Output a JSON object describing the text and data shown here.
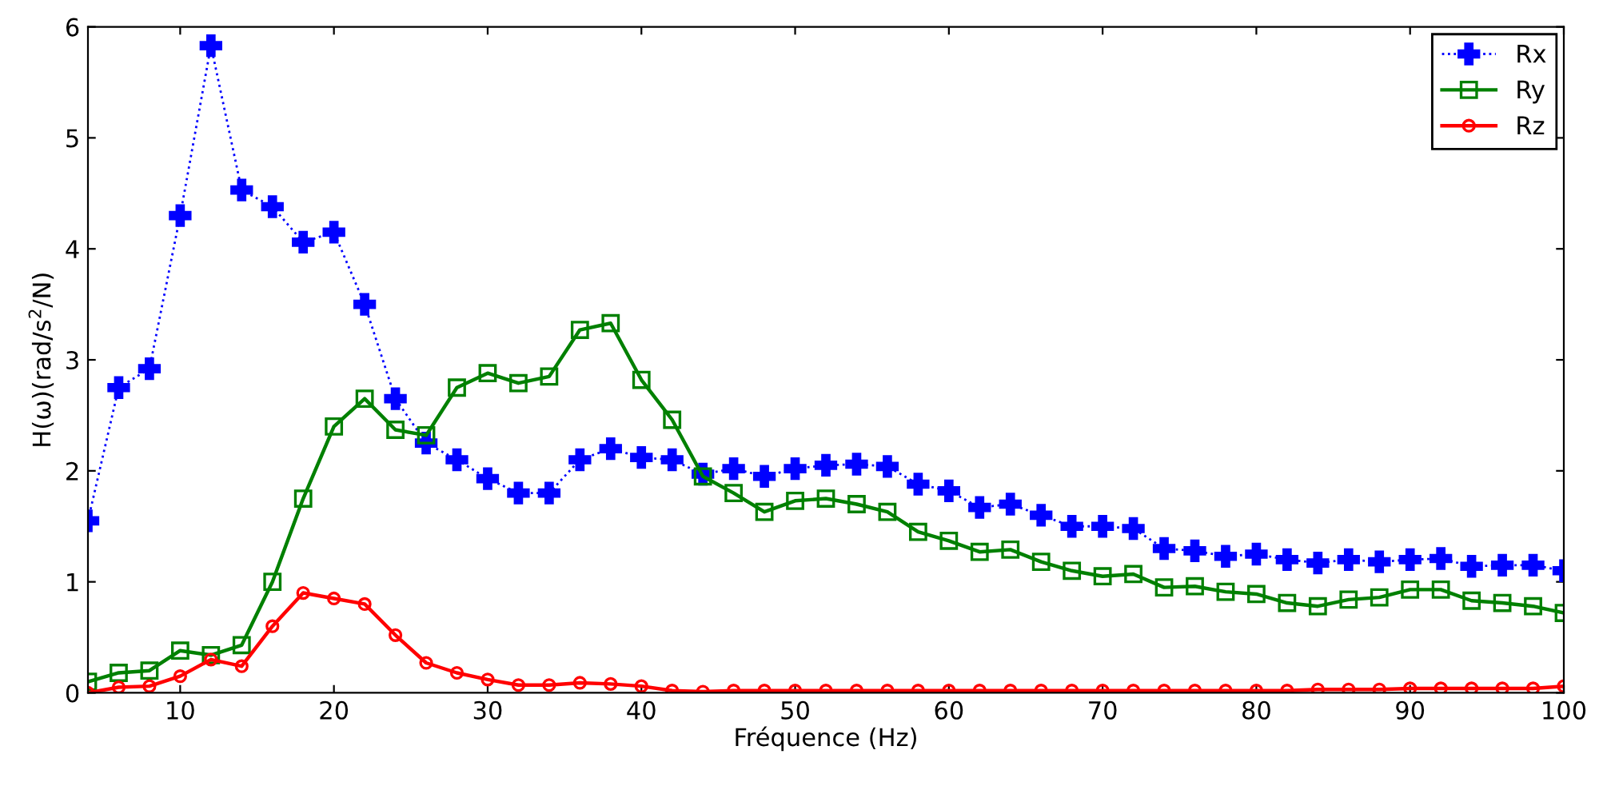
{
  "chart_data": {
    "type": "line",
    "xlabel": "Fréquence (Hz)",
    "ylabel": "H(ω)(rad/s$^{2}$/N)",
    "x": [
      4,
      6,
      8,
      10,
      12,
      14,
      16,
      18,
      20,
      22,
      24,
      26,
      28,
      30,
      32,
      34,
      36,
      38,
      40,
      42,
      44,
      46,
      48,
      50,
      52,
      54,
      56,
      58,
      60,
      62,
      64,
      66,
      68,
      70,
      72,
      74,
      76,
      78,
      80,
      82,
      84,
      86,
      88,
      90,
      92,
      94,
      96,
      98,
      100
    ],
    "series": [
      {
        "name": "Rx",
        "color": "#0000ff",
        "marker": "cross",
        "line_style": "dotted",
        "values": [
          1.55,
          2.75,
          2.92,
          4.3,
          5.83,
          4.53,
          4.38,
          4.06,
          4.15,
          3.5,
          2.65,
          2.25,
          2.1,
          1.93,
          1.8,
          1.8,
          2.1,
          2.2,
          2.12,
          2.1,
          1.97,
          2.02,
          1.95,
          2.02,
          2.05,
          2.06,
          2.04,
          1.88,
          1.82,
          1.67,
          1.7,
          1.6,
          1.5,
          1.5,
          1.48,
          1.3,
          1.28,
          1.23,
          1.25,
          1.2,
          1.17,
          1.2,
          1.18,
          1.2,
          1.21,
          1.14,
          1.15,
          1.15,
          1.1
        ]
      },
      {
        "name": "Ry",
        "color": "#008000",
        "marker": "square",
        "line_style": "solid",
        "values": [
          0.1,
          0.18,
          0.2,
          0.38,
          0.34,
          0.43,
          1.0,
          1.75,
          2.4,
          2.65,
          2.37,
          2.32,
          2.75,
          2.88,
          2.79,
          2.85,
          3.27,
          3.33,
          2.82,
          2.46,
          1.95,
          1.8,
          1.63,
          1.73,
          1.75,
          1.7,
          1.63,
          1.45,
          1.37,
          1.27,
          1.29,
          1.18,
          1.1,
          1.05,
          1.07,
          0.95,
          0.96,
          0.91,
          0.89,
          0.81,
          0.78,
          0.84,
          0.86,
          0.93,
          0.93,
          0.83,
          0.81,
          0.78,
          0.72
        ]
      },
      {
        "name": "Rz",
        "color": "#ff0000",
        "marker": "circle",
        "line_style": "solid",
        "values": [
          0.0,
          0.05,
          0.06,
          0.15,
          0.3,
          0.24,
          0.6,
          0.9,
          0.85,
          0.8,
          0.52,
          0.27,
          0.18,
          0.12,
          0.07,
          0.07,
          0.09,
          0.08,
          0.06,
          0.02,
          0.01,
          0.02,
          0.02,
          0.02,
          0.02,
          0.02,
          0.02,
          0.02,
          0.02,
          0.02,
          0.02,
          0.02,
          0.02,
          0.02,
          0.02,
          0.02,
          0.02,
          0.02,
          0.02,
          0.02,
          0.03,
          0.03,
          0.03,
          0.04,
          0.04,
          0.04,
          0.04,
          0.04,
          0.06
        ]
      }
    ],
    "xlim": [
      4,
      100
    ],
    "xticks": [
      10,
      20,
      30,
      40,
      50,
      60,
      70,
      80,
      90,
      100
    ],
    "ylim": [
      0,
      6
    ],
    "yticks": [
      0,
      1,
      2,
      3,
      4,
      5,
      6
    ],
    "grid": false,
    "legend": "top right"
  }
}
